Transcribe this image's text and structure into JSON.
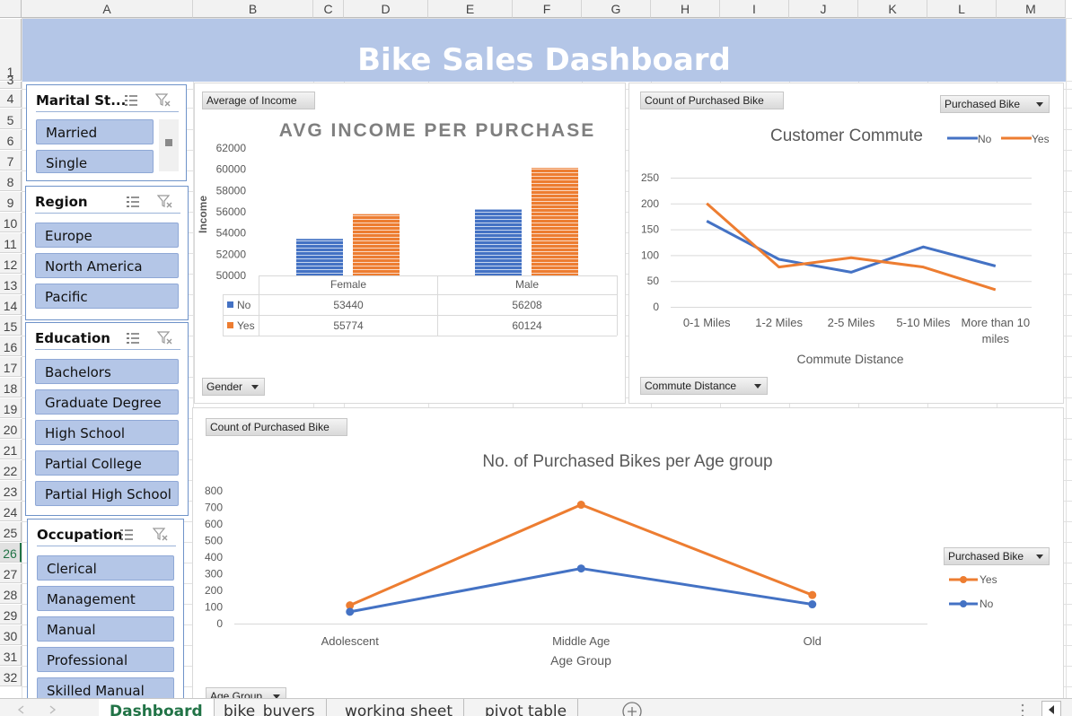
{
  "columns": [
    "A",
    "B",
    "C",
    "D",
    "E",
    "F",
    "G",
    "H",
    "I",
    "J",
    "K",
    "L",
    "M"
  ],
  "rows": [
    "1",
    "3",
    "4",
    "5",
    "6",
    "7",
    "8",
    "9",
    "10",
    "11",
    "12",
    "13",
    "14",
    "15",
    "16",
    "17",
    "18",
    "19",
    "20",
    "21",
    "22",
    "23",
    "24",
    "25",
    "26",
    "27",
    "28",
    "29",
    "30",
    "31",
    "32"
  ],
  "active_row": "26",
  "dashboard": {
    "title": "Bike Sales Dashboard"
  },
  "slicers": {
    "marital_status": {
      "title": "Marital St...",
      "items": [
        "Married",
        "Single"
      ]
    },
    "region": {
      "title": "Region",
      "items": [
        "Europe",
        "North America",
        "Pacific"
      ]
    },
    "education": {
      "title": "Education",
      "items": [
        "Bachelors",
        "Graduate Degree",
        "High School",
        "Partial College",
        "Partial High School"
      ]
    },
    "occupation": {
      "title": "Occupation",
      "items": [
        "Clerical",
        "Management",
        "Manual",
        "Professional",
        "Skilled Manual"
      ]
    }
  },
  "field_buttons": {
    "avg_income": "Average of Income",
    "gender": "Gender",
    "count_commute": "Count of Purchased Bike",
    "purchased_bike_commute": "Purchased Bike",
    "commute_distance": "Commute Distance",
    "count_age": "Count of Purchased Bike",
    "purchased_bike_age": "Purchased Bike",
    "age_group": "Age Group"
  },
  "colors": {
    "no": "#4472c4",
    "yes": "#ed7d31",
    "banner": "#b4c6e7",
    "accent": "#217346"
  },
  "sheet_tabs": {
    "items": [
      "Dashboard",
      "bike_buyers",
      "working sheet",
      "pivot table"
    ],
    "active": "Dashboard"
  },
  "chart_data": [
    {
      "type": "bar",
      "title": "AVG INCOME PER PURCHASE",
      "ylabel": "Income",
      "xlabel": "",
      "ylim": [
        50000,
        62000
      ],
      "yticks": [
        "62000",
        "60000",
        "58000",
        "56000",
        "54000",
        "52000",
        "50000"
      ],
      "categories": [
        "Female",
        "Male"
      ],
      "series": [
        {
          "name": "No",
          "values": [
            53440,
            56208
          ]
        },
        {
          "name": "Yes",
          "values": [
            55774,
            60124
          ]
        }
      ],
      "table": [
        {
          "name": "No",
          "values": [
            "53440",
            "56208"
          ]
        },
        {
          "name": "Yes",
          "values": [
            "55774",
            "60124"
          ]
        }
      ]
    },
    {
      "type": "line",
      "title": "Customer Commute",
      "xlabel": "Commute Distance",
      "ylabel": "",
      "ylim": [
        0,
        250
      ],
      "yticks": [
        "250",
        "200",
        "150",
        "100",
        "50",
        "0"
      ],
      "categories": [
        "0-1 Miles",
        "1-2 Miles",
        "2-5 Miles",
        "5-10 Miles",
        "More than 10 miles"
      ],
      "legend": [
        "No",
        "Yes"
      ],
      "series": [
        {
          "name": "No",
          "values": [
            166,
            92,
            67,
            116,
            79
          ]
        },
        {
          "name": "Yes",
          "values": [
            200,
            77,
            95,
            77,
            33
          ]
        }
      ]
    },
    {
      "type": "line",
      "title": "No. of Purchased Bikes per Age group",
      "xlabel": "Age Group",
      "ylabel": "",
      "ylim": [
        0,
        800
      ],
      "yticks": [
        "800",
        "700",
        "600",
        "500",
        "400",
        "300",
        "200",
        "100",
        "0"
      ],
      "categories": [
        "Adolescent",
        "Middle Age",
        "Old"
      ],
      "legend": [
        "Yes",
        "No"
      ],
      "series": [
        {
          "name": "Yes",
          "values": [
            110,
            716,
            172
          ]
        },
        {
          "name": "No",
          "values": [
            71,
            332,
            116
          ]
        }
      ]
    }
  ]
}
